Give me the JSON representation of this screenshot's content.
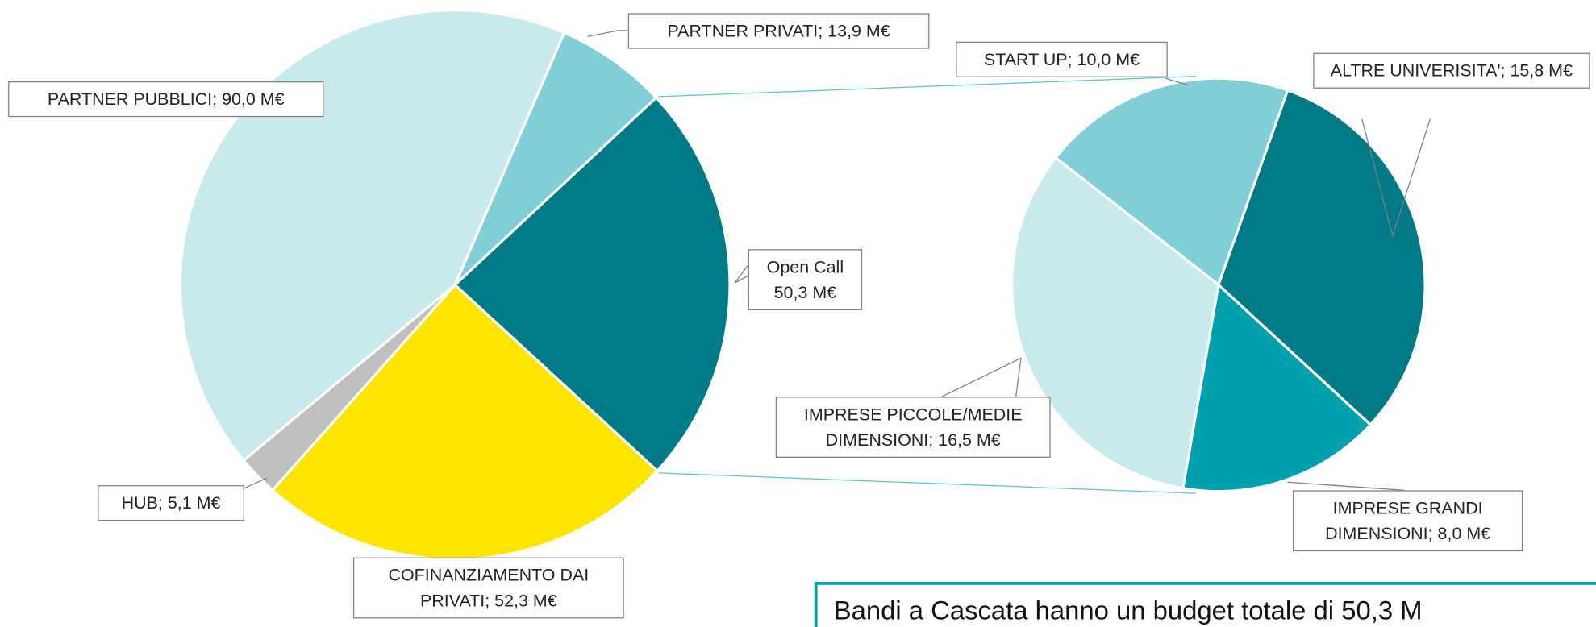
{
  "chart_data": [
    {
      "type": "pie",
      "values": [
        13.9,
        50.3,
        52.3,
        5.1,
        90.0
      ],
      "value_labels": [
        "PARTNER PRIVATI; 13,9 M€",
        "Open Call 50,3 M€",
        "COFINANZIAMENTO DAI PRIVATI; 52,3 M€",
        "HUB; 5,1 M€",
        "PARTNER PUBBLICI; 90,0 M€"
      ],
      "colors": [
        "#80cfd6",
        "#007a85",
        "#ffe500",
        "#bfbfbf",
        "#c8eaed"
      ]
    },
    {
      "type": "pie",
      "values": [
        10.0,
        15.8,
        8.0,
        16.5
      ],
      "value_labels": [
        "START UP; 10,0 M€",
        "ALTRE UNIVERISITA'; 15,8 M€",
        "IMPRESE GRANDI DIMENSIONI; 8,0 M€",
        "IMPRESE PICCOLE/MEDIE DIMENSIONI; 16,5 M€"
      ],
      "colors": [
        "#80cfd6",
        "#007a85",
        "#00a0ac",
        "#c8eaed"
      ]
    }
  ],
  "annotation": "Bandi a Cascata hanno un budget totale di 50,3 M"
}
